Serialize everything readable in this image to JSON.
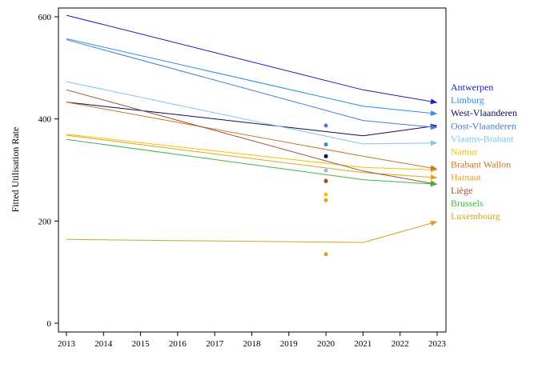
{
  "chart_data": {
    "type": "line",
    "title": "",
    "xlabel": "",
    "ylabel": "Fitted Utilisation Rate",
    "xlim": [
      2013,
      2023
    ],
    "ylim": [
      0,
      600
    ],
    "x_ticks": [
      "2013",
      "2014",
      "2015",
      "2016",
      "2017",
      "2018",
      "2019",
      "2020",
      "2021",
      "2022",
      "2023"
    ],
    "y_ticks": [
      "0",
      "200",
      "400",
      "600"
    ],
    "grid": false,
    "legend_placement": "right",
    "series": [
      {
        "name": "Antwerpen",
        "color": "#1a1ad0",
        "x": [
          2013,
          2021,
          2023
        ],
        "y": [
          603,
          457,
          432
        ],
        "point": {
          "x": 2020,
          "y": null
        }
      },
      {
        "name": "Limburg",
        "color": "#2a8ee6",
        "x": [
          2013,
          2021,
          2023
        ],
        "y": [
          557,
          425,
          410
        ],
        "point": {
          "x": 2020,
          "y": 350
        }
      },
      {
        "name": "West-Vlaanderen",
        "color": "#0a0a60",
        "x": [
          2013,
          2021,
          2023
        ],
        "y": [
          433,
          367,
          387
        ],
        "point": {
          "x": 2020,
          "y": 327
        }
      },
      {
        "name": "Oost-Vlaanderen",
        "color": "#4a7ad8",
        "x": [
          2013,
          2021,
          2023
        ],
        "y": [
          555,
          397,
          383
        ],
        "point": {
          "x": 2020,
          "y": 387
        }
      },
      {
        "name": "Vlaams-Brabant",
        "color": "#7fc6ee",
        "x": [
          2013,
          2021,
          2023
        ],
        "y": [
          473,
          351,
          353
        ],
        "point": {
          "x": 2020,
          "y": 299
        }
      },
      {
        "name": "Namur",
        "color": "#f2c200",
        "x": [
          2013,
          2021,
          2023
        ],
        "y": [
          370,
          305,
          300
        ],
        "point": {
          "x": 2020,
          "y": 252
        }
      },
      {
        "name": "Brabant Wallon",
        "color": "#c8742a",
        "x": [
          2013,
          2021,
          2023
        ],
        "y": [
          433,
          327,
          302
        ],
        "point": {
          "x": 2020,
          "y": 279
        }
      },
      {
        "name": "Hainaut",
        "color": "#e6a21e",
        "x": [
          2013,
          2021,
          2023
        ],
        "y": [
          368,
          295,
          285
        ],
        "point": {
          "x": 2020,
          "y": 241
        }
      },
      {
        "name": "Liège",
        "color": "#a0522d",
        "x": [
          2013,
          2021,
          2023
        ],
        "y": [
          457,
          298,
          272
        ],
        "point": {
          "x": 2020,
          "y": 278
        }
      },
      {
        "name": "Brussels",
        "color": "#3cb83c",
        "x": [
          2013,
          2021,
          2023
        ],
        "y": [
          360,
          281,
          272
        ],
        "point": {
          "x": 2020,
          "y": null
        }
      },
      {
        "name": "Luxembourg",
        "color": "#daa020",
        "x": [
          2013,
          2021,
          2023
        ],
        "y": [
          164,
          158,
          199
        ],
        "point": {
          "x": 2020,
          "y": 135
        }
      }
    ]
  }
}
